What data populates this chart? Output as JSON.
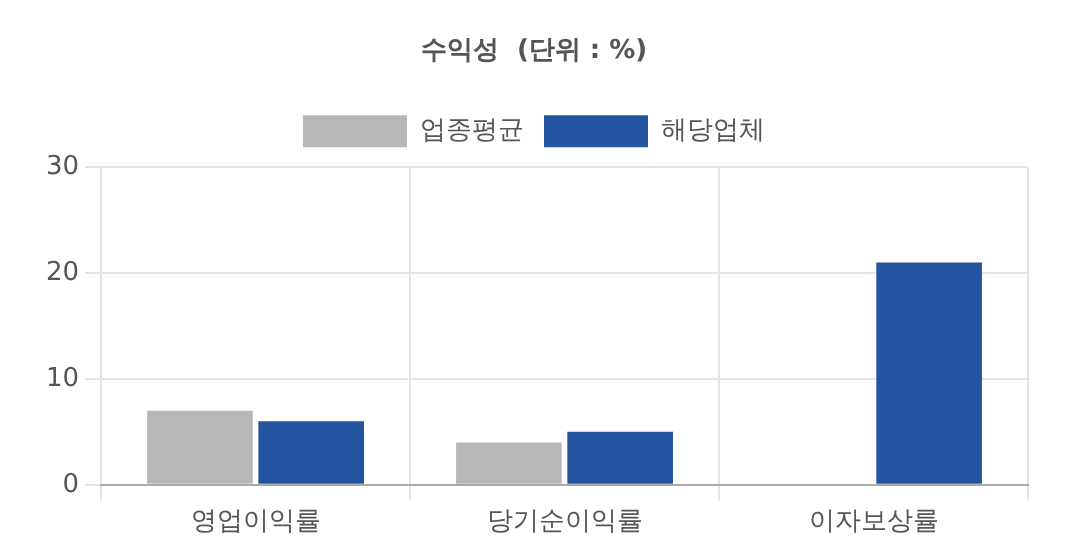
{
  "chart_data": {
    "type": "bar",
    "title": "수익성  (단위 : %)",
    "categories": [
      "영업이익률",
      "당기순이익률",
      "이자보상률"
    ],
    "series": [
      {
        "name": "업종평균",
        "color": "#b7b7b7",
        "values": [
          7,
          4,
          null
        ]
      },
      {
        "name": "해당업체",
        "color": "#2454a0",
        "values": [
          6,
          5,
          21
        ]
      }
    ],
    "ylim": [
      0,
      30
    ],
    "yticks": [
      0,
      10,
      20,
      30
    ],
    "grid": true,
    "legend": "top"
  }
}
